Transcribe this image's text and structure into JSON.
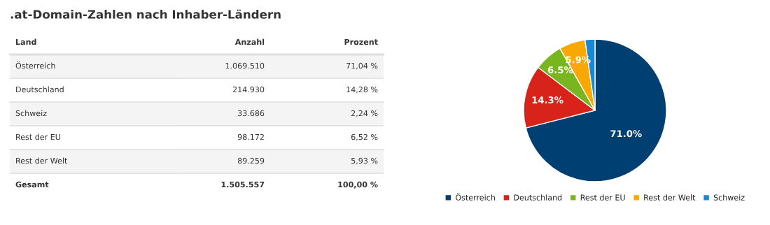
{
  "chart_data": {
    "type": "pie",
    "title": ".at-Domain-Zahlen nach Inhaber-Ländern",
    "categories": [
      "Österreich",
      "Deutschland",
      "Rest der EU",
      "Rest der Welt",
      "Schweiz"
    ],
    "values": [
      71.04,
      14.28,
      6.52,
      5.93,
      2.24
    ],
    "colors": [
      "#003f72",
      "#d8231b",
      "#78b51f",
      "#f8a800",
      "#1a86d6"
    ],
    "value_labels": [
      "71.0%",
      "14.3%",
      "6.5%",
      "5.9%",
      null
    ],
    "legend": "bottom",
    "annotations": [
      "Land",
      "Anzahl",
      "Prozent",
      "Österreich",
      "1.069.510",
      "71,04 %",
      "Deutschland",
      "214.930",
      "14,28 %",
      "Schweiz",
      "33.686",
      "2,24 %",
      "Rest der EU",
      "98.172",
      "6,52 %",
      "Rest der Welt",
      "89.259",
      "5,93 %",
      "Gesamt",
      "1.505.557",
      "100,00 %"
    ]
  }
}
